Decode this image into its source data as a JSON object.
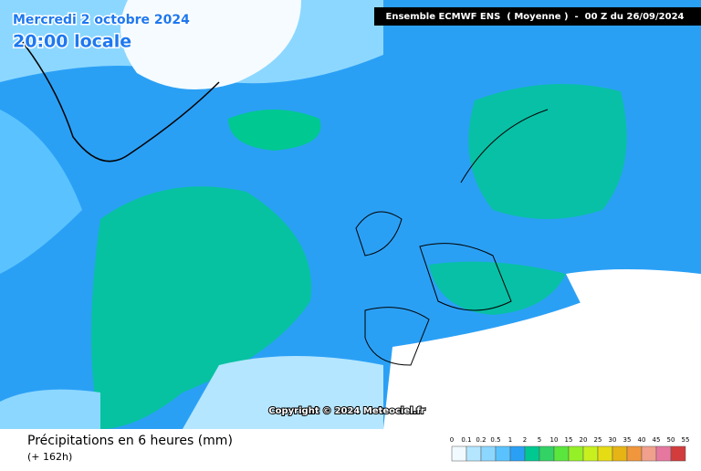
{
  "header": {
    "date": "Mercredi 2 octobre 2024",
    "time": "20:00 locale",
    "model": "Ensemble ECMWF ENS  ( Moyenne )  -  00 Z du 26/09/2024"
  },
  "map": {
    "copyright": "Copyright © 2024 Meteociel.fr"
  },
  "footer": {
    "title": "Précipitations en 6 heures (mm)",
    "lead": "(+ 162h)"
  },
  "legend": {
    "labels": [
      "0",
      "0.1",
      "0.2",
      "0.5",
      "1",
      "2",
      "5",
      "10",
      "15",
      "20",
      "25",
      "30",
      "35",
      "40",
      "45",
      "50",
      "55"
    ],
    "colors": [
      "#f0faff",
      "#b4e6ff",
      "#8cd7ff",
      "#5ac3ff",
      "#2aa0f5",
      "#00c891",
      "#32d264",
      "#5ae63c",
      "#96f028",
      "#c8f01e",
      "#e6dc14",
      "#e6b414",
      "#f0963c",
      "#f0a08c",
      "#e678a0",
      "#d23c3c"
    ]
  }
}
